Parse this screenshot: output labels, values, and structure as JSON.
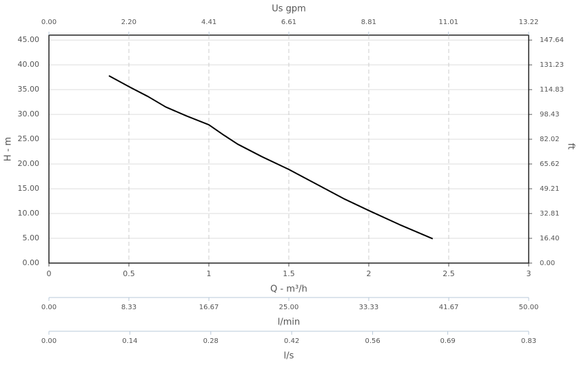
{
  "chart_data": {
    "type": "line",
    "xlabel": "Q - m³/h",
    "ylabel": "H - m",
    "y2label": "ft",
    "x": [
      0.375,
      0.5,
      0.62,
      0.73,
      0.86,
      1.0,
      1.095,
      1.18,
      1.33,
      1.5,
      1.68,
      1.85,
      2.0,
      2.19,
      2.4
    ],
    "series": [
      {
        "color": "#000000",
        "values": [
          37.8,
          35.6,
          33.6,
          31.5,
          29.7,
          27.9,
          25.8,
          24.0,
          21.5,
          18.9,
          15.8,
          12.9,
          10.6,
          7.8,
          4.9
        ]
      }
    ],
    "xlim": [
      0,
      3
    ],
    "xticks": [
      0,
      0.5,
      1,
      1.5,
      2,
      2.5,
      3
    ],
    "ylim": [
      0,
      46
    ],
    "yticks": [
      {
        "value": 0,
        "label": "0.00"
      },
      {
        "value": 5,
        "label": "5.00"
      },
      {
        "value": 10,
        "label": "10.00"
      },
      {
        "value": 15,
        "label": "15.00"
      },
      {
        "value": 20,
        "label": "20.00"
      },
      {
        "value": 25,
        "label": "25.00"
      },
      {
        "value": 30,
        "label": "30.00"
      },
      {
        "value": 35,
        "label": "35.00"
      },
      {
        "value": 40,
        "label": "40.00"
      },
      {
        "value": 45,
        "label": "45.00"
      }
    ],
    "y2lim": [
      0,
      150.92
    ],
    "y2ticks": [
      {
        "value": 0,
        "label": "0.00"
      },
      {
        "value": 16.4,
        "label": "16.40"
      },
      32.81,
      49.21,
      65.62,
      82.02,
      98.43,
      114.83,
      131.23,
      147.64
    ],
    "grid": true,
    "extra_axes": [
      {
        "label": "Us gpm",
        "position": "top",
        "lim": [
          0,
          13.22
        ],
        "ticks": [
          {
            "value": 0,
            "label": "0.00"
          },
          {
            "value": 2.2,
            "label": "2.20"
          },
          4.41,
          6.61,
          8.81,
          11.01,
          13.22
        ]
      },
      {
        "label": "l/min",
        "position": "bottom",
        "lim": [
          0,
          50
        ],
        "ticks": [
          {
            "value": 0,
            "label": "0.00"
          },
          8.33,
          16.67,
          {
            "value": 25,
            "label": "25.00"
          },
          33.33,
          41.67,
          {
            "value": 50,
            "label": "50.00"
          }
        ]
      },
      {
        "label": "l/s",
        "position": "bottom",
        "lim": [
          0,
          0.83
        ],
        "ticks": [
          {
            "value": 0,
            "label": "0.00"
          },
          0.14,
          0.28,
          0.42,
          0.56,
          0.69,
          0.83
        ]
      }
    ]
  }
}
